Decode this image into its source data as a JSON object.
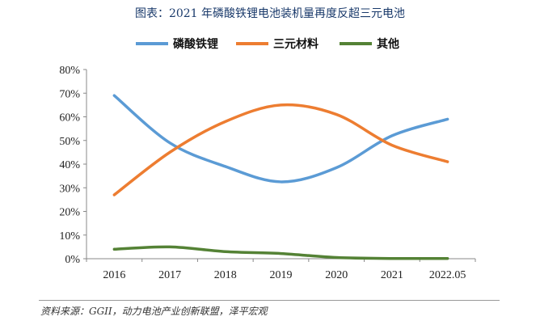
{
  "title": "图表：2021 年磷酸铁锂电池装机量再度反超三元电池",
  "source": "资料来源：GGII，动力电池产业创新联盟，泽平宏观",
  "chart_data": {
    "type": "line",
    "title": "图表：2021 年磷酸铁锂电池装机量再度反超三元电池",
    "categories": [
      "2016",
      "2017",
      "2018",
      "2019",
      "2020",
      "2021",
      "2022.05"
    ],
    "yticks": [
      "0%",
      "10%",
      "20%",
      "30%",
      "40%",
      "50%",
      "60%",
      "70%",
      "80%"
    ],
    "ylim": [
      0,
      80
    ],
    "legend_position": "top",
    "series": [
      {
        "name": "磷酸铁锂",
        "color": "#5b9bd5",
        "values": [
          69,
          49,
          39,
          32.5,
          38.5,
          52,
          59
        ]
      },
      {
        "name": "三元材料",
        "color": "#ed7d31",
        "values": [
          27,
          45,
          58,
          65,
          61,
          48,
          41
        ]
      },
      {
        "name": "其他",
        "color": "#548235",
        "values": [
          4,
          5,
          3,
          2.2,
          0.5,
          0.1,
          0.1
        ]
      }
    ]
  }
}
